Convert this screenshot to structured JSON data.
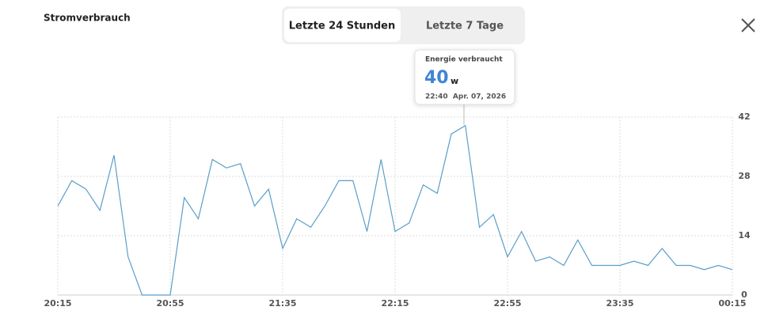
{
  "title": "Stromverbrauch",
  "tabs": [
    "Letzte 24 Stunden",
    "Letzte 7 Tage"
  ],
  "tooltip": {
    "label": "Energie verbraucht",
    "value": 40,
    "unit": "w",
    "time": "22:40  Apr. 07, 2026"
  },
  "chart_data": {
    "type": "line",
    "categories": [
      "20:15",
      null,
      null,
      null,
      null,
      null,
      null,
      null,
      "20:55",
      null,
      null,
      null,
      null,
      null,
      null,
      null,
      "21:35",
      null,
      null,
      null,
      null,
      null,
      null,
      null,
      "22:15",
      null,
      null,
      null,
      null,
      null,
      null,
      null,
      "22:55",
      null,
      null,
      null,
      null,
      null,
      null,
      null,
      "23:35",
      null,
      null,
      null,
      null,
      null,
      null,
      null,
      "00:15"
    ],
    "values": [
      21,
      27,
      25,
      20,
      33,
      9,
      0,
      0,
      0,
      23,
      18,
      32,
      30,
      31,
      21,
      25,
      11,
      18,
      16,
      21,
      27,
      27,
      15,
      32,
      15,
      17,
      26,
      24,
      38,
      40,
      16,
      19,
      9,
      15,
      8,
      9,
      7,
      13,
      7,
      7,
      7,
      8,
      7,
      11,
      7,
      7,
      6,
      7,
      6
    ],
    "color": "#5a9ec9",
    "ylim": [
      0,
      42
    ],
    "yticks": [
      0,
      14,
      28,
      42
    ],
    "grid": true
  }
}
